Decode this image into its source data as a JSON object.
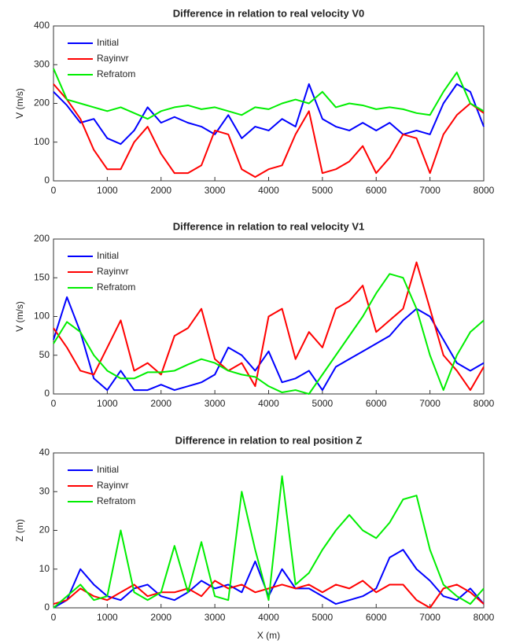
{
  "chart_data": [
    {
      "type": "line",
      "title": "Difference in relation to real velocity V0",
      "y_label": "V (m/s)",
      "x": [
        0,
        250,
        500,
        750,
        1000,
        1250,
        1500,
        1750,
        2000,
        2250,
        2500,
        2750,
        3000,
        3250,
        3500,
        3750,
        4000,
        4250,
        4500,
        4750,
        5000,
        5250,
        5500,
        5750,
        6000,
        6250,
        6500,
        6750,
        7000,
        7250,
        7500,
        7750,
        8000
      ],
      "xlim": [
        0,
        8000
      ],
      "xticks": [
        0,
        1000,
        2000,
        3000,
        4000,
        5000,
        6000,
        7000,
        8000
      ],
      "ylim": [
        0,
        400
      ],
      "yticks": [
        0,
        100,
        200,
        300,
        400
      ],
      "legend": "upper-left",
      "series": [
        {
          "name": "Initial",
          "color": "#0000ff",
          "values": [
            230,
            195,
            150,
            160,
            110,
            95,
            130,
            190,
            150,
            165,
            150,
            140,
            120,
            170,
            110,
            140,
            130,
            160,
            140,
            250,
            160,
            140,
            130,
            150,
            130,
            150,
            120,
            130,
            120,
            200,
            250,
            230,
            140
          ]
        },
        {
          "name": "Rayinvr",
          "color": "#ff0000",
          "values": [
            250,
            210,
            160,
            80,
            30,
            30,
            100,
            140,
            70,
            20,
            20,
            40,
            130,
            120,
            30,
            10,
            30,
            40,
            120,
            180,
            20,
            30,
            50,
            90,
            20,
            60,
            120,
            110,
            20,
            120,
            170,
            200,
            175
          ]
        },
        {
          "name": "Refratom",
          "color": "#00ee00",
          "values": [
            290,
            210,
            200,
            190,
            180,
            190,
            175,
            160,
            180,
            190,
            195,
            185,
            190,
            180,
            170,
            190,
            185,
            200,
            210,
            200,
            230,
            190,
            200,
            195,
            185,
            190,
            185,
            175,
            170,
            230,
            280,
            200,
            180
          ]
        }
      ]
    },
    {
      "type": "line",
      "title": "Difference in relation to real velocity V1",
      "y_label": "V (m/s)",
      "x": [
        0,
        250,
        500,
        750,
        1000,
        1250,
        1500,
        1750,
        2000,
        2250,
        2500,
        2750,
        3000,
        3250,
        3500,
        3750,
        4000,
        4250,
        4500,
        4750,
        5000,
        5250,
        5500,
        5750,
        6000,
        6250,
        6500,
        6750,
        7000,
        7250,
        7500,
        7750,
        8000
      ],
      "xlim": [
        0,
        8000
      ],
      "xticks": [
        0,
        1000,
        2000,
        3000,
        4000,
        5000,
        6000,
        7000,
        8000
      ],
      "ylim": [
        0,
        200
      ],
      "yticks": [
        0,
        50,
        100,
        150,
        200
      ],
      "legend": "upper-left",
      "series": [
        {
          "name": "Initial",
          "color": "#0000ff",
          "values": [
            70,
            125,
            80,
            20,
            5,
            30,
            5,
            5,
            12,
            5,
            10,
            15,
            25,
            60,
            50,
            30,
            55,
            15,
            20,
            30,
            5,
            35,
            45,
            55,
            65,
            75,
            95,
            110,
            100,
            70,
            40,
            30,
            40
          ]
        },
        {
          "name": "Rayinvr",
          "color": "#ff0000",
          "values": [
            85,
            60,
            30,
            25,
            60,
            95,
            30,
            40,
            25,
            75,
            85,
            110,
            45,
            30,
            40,
            10,
            100,
            110,
            45,
            80,
            60,
            110,
            120,
            140,
            80,
            95,
            110,
            170,
            110,
            50,
            30,
            5,
            35
          ]
        },
        {
          "name": "Refratom",
          "color": "#00ee00",
          "values": [
            65,
            93,
            80,
            50,
            30,
            20,
            20,
            28,
            28,
            30,
            38,
            45,
            40,
            30,
            25,
            22,
            10,
            2,
            5,
            0,
            25,
            50,
            75,
            100,
            130,
            155,
            150,
            110,
            50,
            5,
            50,
            80,
            95
          ]
        }
      ]
    },
    {
      "type": "line",
      "title": "Difference in relation to real position Z",
      "y_label": "Z (m)",
      "x_label": "X (m)",
      "x": [
        0,
        250,
        500,
        750,
        1000,
        1250,
        1500,
        1750,
        2000,
        2250,
        2500,
        2750,
        3000,
        3250,
        3500,
        3750,
        4000,
        4250,
        4500,
        4750,
        5000,
        5250,
        5500,
        5750,
        6000,
        6250,
        6500,
        6750,
        7000,
        7250,
        7500,
        7750,
        8000
      ],
      "xlim": [
        0,
        8000
      ],
      "xticks": [
        0,
        1000,
        2000,
        3000,
        4000,
        5000,
        6000,
        7000,
        8000
      ],
      "ylim": [
        0,
        40
      ],
      "yticks": [
        0,
        10,
        20,
        30,
        40
      ],
      "legend": "upper-left",
      "series": [
        {
          "name": "Initial",
          "color": "#0000ff",
          "values": [
            0,
            2,
            10,
            6,
            3,
            2,
            5,
            6,
            3,
            2,
            4,
            7,
            5,
            6,
            4,
            12,
            3,
            10,
            5,
            5,
            3,
            1,
            2,
            3,
            5,
            13,
            15,
            10,
            7,
            3,
            2,
            5,
            1
          ]
        },
        {
          "name": "Rayinvr",
          "color": "#ff0000",
          "values": [
            1,
            2,
            5,
            3,
            2,
            4,
            6,
            3,
            4,
            4,
            5,
            3,
            7,
            5,
            6,
            4,
            5,
            6,
            5,
            6,
            4,
            6,
            5,
            7,
            4,
            6,
            6,
            2,
            0,
            5,
            6,
            4,
            1
          ]
        },
        {
          "name": "Refratom",
          "color": "#00ee00",
          "values": [
            0,
            3,
            6,
            2,
            3,
            20,
            4,
            2,
            4,
            16,
            4,
            17,
            3,
            2,
            30,
            15,
            2,
            34,
            6,
            9,
            15,
            20,
            24,
            20,
            18,
            22,
            28,
            29,
            15,
            6,
            3,
            1,
            5
          ]
        }
      ]
    }
  ]
}
